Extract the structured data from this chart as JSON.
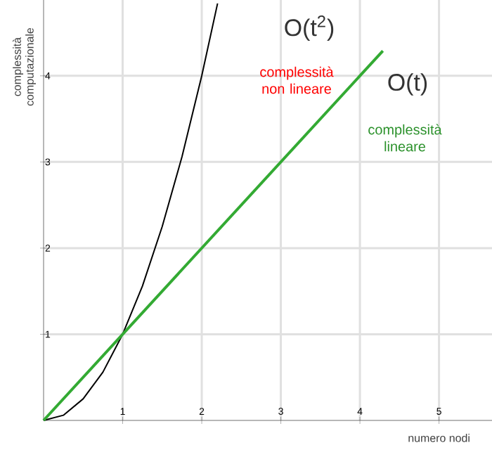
{
  "chart_data": {
    "type": "line",
    "xlabel": "numero nodi",
    "ylabel": "complessità computazionale",
    "xlim": [
      0,
      5.67
    ],
    "ylim": [
      0,
      4.88
    ],
    "xticks": [
      1,
      2,
      3,
      4,
      5
    ],
    "yticks": [
      1,
      2,
      3,
      4
    ],
    "grid": true,
    "marker": "none",
    "line_style": "solid",
    "series": [
      {
        "color": "#000000",
        "x": [
          0,
          0.25,
          0.5,
          0.75,
          1,
          1.25,
          1.5,
          1.75,
          2,
          2.2
        ],
        "values": [
          0,
          0.06,
          0.25,
          0.56,
          1,
          1.56,
          2.25,
          3.06,
          4,
          4.84
        ]
      },
      {
        "color": "#33aa33",
        "x": [
          0,
          4.29
        ],
        "values": [
          0,
          4.29
        ]
      }
    ],
    "annotations": [
      "O(t$^{2}$)",
      "complessità non lineare",
      "O(t)",
      "complessità lineare"
    ]
  }
}
